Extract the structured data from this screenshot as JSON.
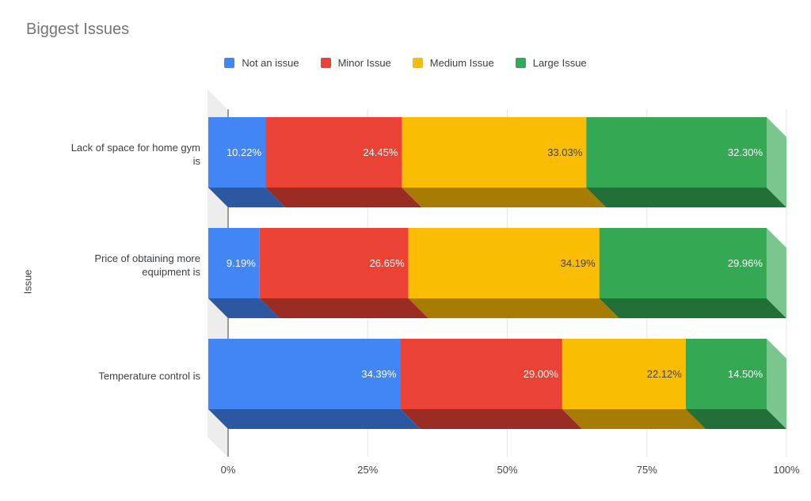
{
  "chart_data": {
    "type": "bar",
    "variant": "stacked-horizontal-3d",
    "title": "Biggest Issues",
    "ylabel": "Issue",
    "xlabel": "",
    "xlim": [
      0,
      100
    ],
    "grid": true,
    "legend_position": "top",
    "x_ticks": [
      {
        "label": "0%",
        "value": 0
      },
      {
        "label": "25%",
        "value": 25
      },
      {
        "label": "50%",
        "value": 50
      },
      {
        "label": "75%",
        "value": 75
      },
      {
        "label": "100%",
        "value": 100
      }
    ],
    "categories": [
      "Lack of space for home gym is",
      "Price of obtaining more equipment is",
      "Temperature control is"
    ],
    "category_display_lines": [
      [
        "Lack of space for home gym",
        "is"
      ],
      [
        "Price of obtaining more",
        "equipment is"
      ],
      [
        "Temperature control is"
      ]
    ],
    "series": [
      {
        "name": "Not an issue",
        "color": "#4285F4",
        "label_color": "#FFFFFF",
        "values": [
          10.22,
          9.19,
          34.39
        ],
        "value_labels": [
          "10.22%",
          "9.19%",
          "34.39%"
        ]
      },
      {
        "name": "Minor Issue",
        "color": "#EA4335",
        "label_color": "#FFFFFF",
        "values": [
          24.45,
          26.65,
          29.0
        ],
        "value_labels": [
          "24.45%",
          "26.65%",
          "29.00%"
        ]
      },
      {
        "name": "Medium Issue",
        "color": "#FBBC04",
        "label_color": "#434343",
        "values": [
          33.03,
          34.19,
          22.12
        ],
        "value_labels": [
          "33.03%",
          "34.19%",
          "22.12%"
        ]
      },
      {
        "name": "Large Issue",
        "color": "#34A853",
        "label_color": "#FFFFFF",
        "values": [
          32.3,
          29.96,
          14.5
        ],
        "value_labels": [
          "32.30%",
          "29.96%",
          "14.50%"
        ]
      }
    ],
    "colors": {
      "axis_line": "#333333",
      "gridline": "#e3e3e3",
      "wall": "#ededed",
      "title_text": "#757575",
      "category_text": "#3c4043",
      "tick_text": "#444444"
    }
  }
}
